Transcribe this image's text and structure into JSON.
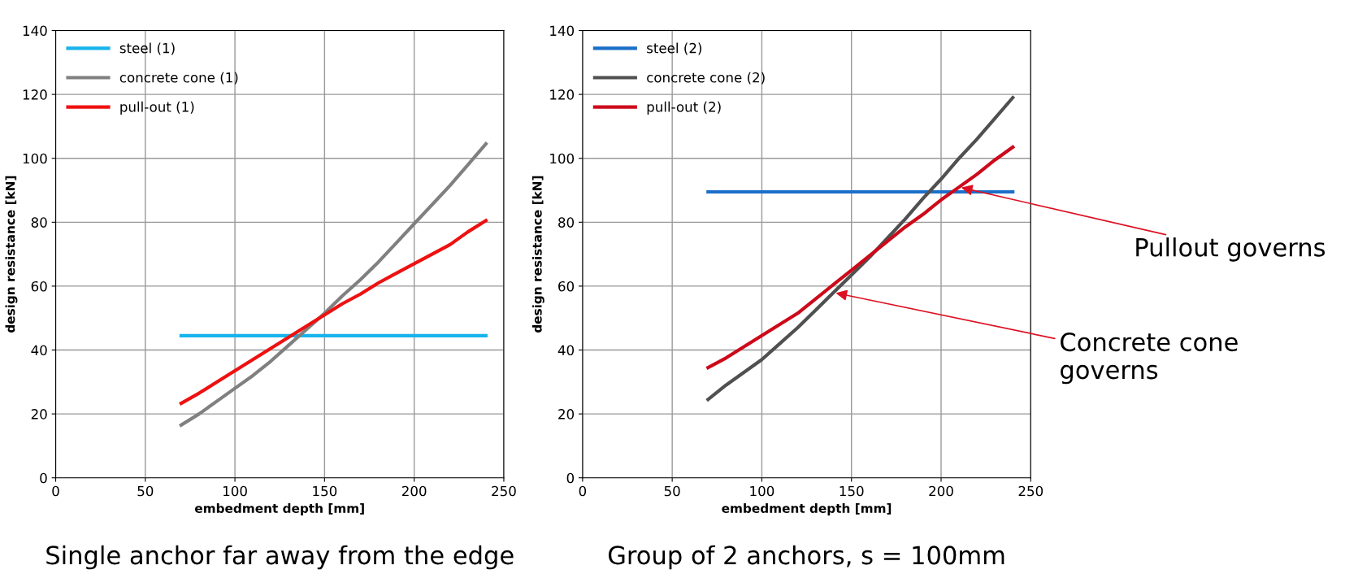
{
  "chart_data": [
    {
      "type": "line",
      "xlabel": "embedment depth [mm]",
      "ylabel": "design resistance [kN]",
      "xlim": [
        0,
        250
      ],
      "xticks": [
        0,
        50,
        100,
        150,
        200,
        250
      ],
      "ylim": [
        0,
        140
      ],
      "yticks": [
        0,
        20,
        40,
        60,
        80,
        100,
        120,
        140
      ],
      "grid": true,
      "legend": "top left",
      "x": [
        70,
        80,
        90,
        100,
        110,
        120,
        130,
        140,
        150,
        160,
        170,
        180,
        190,
        200,
        210,
        220,
        230,
        240
      ],
      "series": [
        {
          "name": "steel (1)",
          "color": "#17b4ec",
          "values": [
            44.5,
            44.5,
            44.5,
            44.5,
            44.5,
            44.5,
            44.5,
            44.5,
            44.5,
            44.5,
            44.5,
            44.5,
            44.5,
            44.5,
            44.5,
            44.5,
            44.5,
            44.5
          ]
        },
        {
          "name": "concrete cone (1)",
          "color": "#808080",
          "values": [
            16.5,
            20,
            24,
            28,
            32,
            36.5,
            41.5,
            46.5,
            51.5,
            57,
            62,
            67.5,
            73.5,
            79.5,
            85.5,
            91.5,
            98,
            104.5
          ]
        },
        {
          "name": "pull-out (1)",
          "color": "#ee1111",
          "values": [
            23.3,
            26.5,
            30,
            33.5,
            37,
            40.5,
            44,
            47.5,
            51,
            54.5,
            57.5,
            61,
            64,
            67,
            70,
            73,
            77,
            80.5
          ]
        }
      ],
      "annotations": [
        "Single anchor far away from the edge"
      ]
    },
    {
      "type": "line",
      "xlabel": "embedment depth [mm]",
      "ylabel": "design resistance [kN]",
      "xlim": [
        0,
        250
      ],
      "xticks": [
        0,
        50,
        100,
        150,
        200,
        250
      ],
      "ylim": [
        0,
        140
      ],
      "yticks": [
        0,
        20,
        40,
        60,
        80,
        100,
        120,
        140
      ],
      "grid": true,
      "legend": "top left",
      "x": [
        70,
        80,
        90,
        100,
        110,
        120,
        130,
        140,
        150,
        160,
        170,
        180,
        190,
        200,
        210,
        220,
        230,
        240
      ],
      "series": [
        {
          "name": "steel (2)",
          "color": "#1b6fc8",
          "values": [
            89.5,
            89.5,
            89.5,
            89.5,
            89.5,
            89.5,
            89.5,
            89.5,
            89.5,
            89.5,
            89.5,
            89.5,
            89.5,
            89.5,
            89.5,
            89.5,
            89.5,
            89.5
          ]
        },
        {
          "name": "concrete cone (2)",
          "color": "#505050",
          "values": [
            24.5,
            29,
            33,
            37,
            42,
            47,
            52.5,
            58,
            63.5,
            69,
            75,
            81,
            87.5,
            93.5,
            100,
            106,
            112.5,
            119
          ]
        },
        {
          "name": "pull-out (2)",
          "color": "#cc0a1a",
          "values": [
            34.5,
            37.5,
            41,
            44.5,
            48,
            51.5,
            56,
            60.5,
            65,
            69.5,
            74,
            78.5,
            82.5,
            87,
            91,
            95,
            99.5,
            103.5
          ]
        }
      ],
      "annotations": [
        "Group of 2 anchors, s = 100mm",
        {
          "text": "Pullout governs",
          "x": 210,
          "y": 91
        },
        {
          "text": "Concrete cone\ngoverns",
          "x": 140,
          "y": 58
        }
      ]
    }
  ]
}
